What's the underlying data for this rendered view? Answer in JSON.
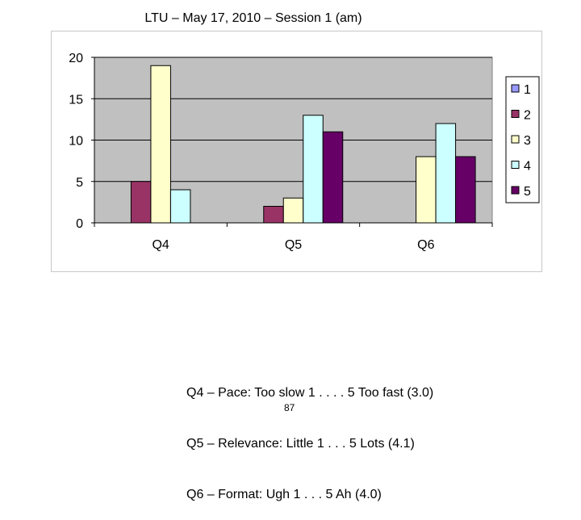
{
  "page": {
    "title": "LTU – May 17, 2010 – Session 1 (am)",
    "notes": [
      "Q4 – Pace: Too slow 1 . . . . 5 Too fast (3.0)",
      "Q5 – Relevance: Little 1 . . . 5 Lots (4.1)",
      "Q6 – Format: Ugh 1 . . . 5 Ah (4.0)"
    ],
    "page_number": "87"
  },
  "chart_data": {
    "type": "bar",
    "title": "",
    "xlabel": "",
    "ylabel": "",
    "categories": [
      "Q4",
      "Q5",
      "Q6"
    ],
    "ylim": [
      0,
      20
    ],
    "yticks": [
      0,
      5,
      10,
      15,
      20
    ],
    "grid": true,
    "legend_position": "right",
    "plot_background": "#c0c0c0",
    "series": [
      {
        "name": "1",
        "color": "#9999ff",
        "values": [
          0,
          0,
          0
        ]
      },
      {
        "name": "2",
        "color": "#993366",
        "values": [
          5,
          2,
          0
        ]
      },
      {
        "name": "3",
        "color": "#ffffcc",
        "values": [
          19,
          3,
          8
        ]
      },
      {
        "name": "4",
        "color": "#ccffff",
        "values": [
          4,
          13,
          12
        ]
      },
      {
        "name": "5",
        "color": "#660066",
        "values": [
          0,
          11,
          8
        ]
      }
    ]
  }
}
